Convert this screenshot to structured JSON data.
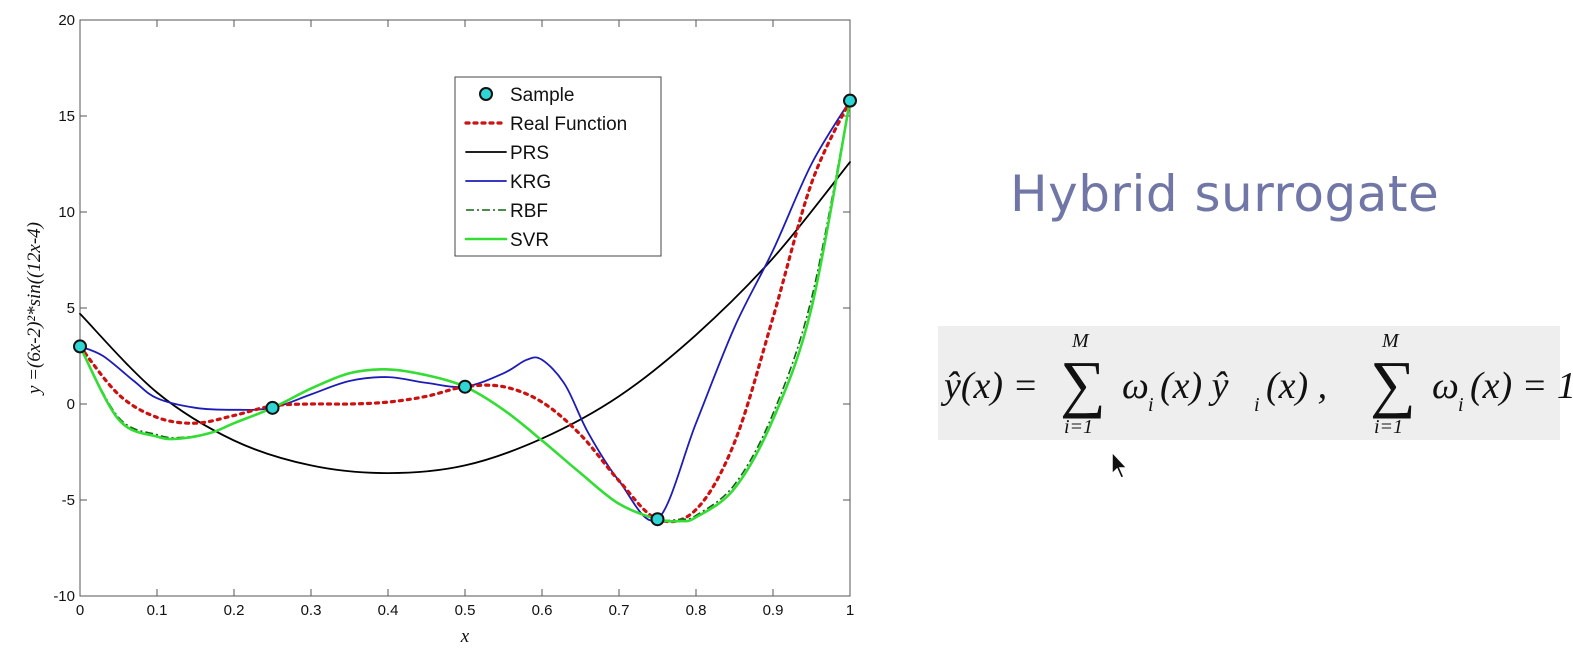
{
  "chart_data": {
    "type": "line",
    "xlabel": "x",
    "ylabel": "y =(6x-2)²*sin((12x-4)",
    "xlim": [
      0,
      1
    ],
    "ylim": [
      -10,
      20
    ],
    "xticks": [
      0,
      0.1,
      0.2,
      0.3,
      0.4,
      0.5,
      0.6,
      0.7,
      0.8,
      0.9,
      1
    ],
    "yticks": [
      -10,
      -5,
      0,
      5,
      10,
      15,
      20
    ],
    "grid": false,
    "legend_position": "top-center",
    "series": [
      {
        "name": "Sample",
        "style": "marker",
        "color": "#2fd6d6",
        "x": [
          0,
          0.25,
          0.5,
          0.75,
          1
        ],
        "y": [
          3.0,
          -0.2,
          0.9,
          -6.0,
          15.8
        ]
      },
      {
        "name": "Real Function",
        "style": "dotted",
        "color": "#cc1111",
        "x": [
          0,
          0.05,
          0.1,
          0.15,
          0.2,
          0.25,
          0.3,
          0.35,
          0.4,
          0.45,
          0.5,
          0.55,
          0.6,
          0.65,
          0.7,
          0.75,
          0.8,
          0.85,
          0.9,
          0.95,
          1
        ],
        "y": [
          3.0,
          0.5,
          -0.7,
          -1.0,
          -0.6,
          -0.1,
          0.0,
          0.0,
          0.1,
          0.4,
          0.9,
          0.9,
          0.1,
          -1.6,
          -4.0,
          -6.0,
          -5.5,
          -2.0,
          4.5,
          11.5,
          15.8
        ]
      },
      {
        "name": "PRS",
        "style": "solid",
        "color": "#000000",
        "x": [
          0,
          0.1,
          0.2,
          0.3,
          0.4,
          0.5,
          0.6,
          0.7,
          0.8,
          0.9,
          1
        ],
        "y": [
          4.7,
          0.6,
          -1.9,
          -3.2,
          -3.6,
          -3.2,
          -1.8,
          0.4,
          3.6,
          7.6,
          12.6
        ]
      },
      {
        "name": "KRG",
        "style": "solid",
        "color": "#1c1cb8",
        "x": [
          0,
          0.03,
          0.07,
          0.1,
          0.15,
          0.2,
          0.25,
          0.3,
          0.35,
          0.4,
          0.45,
          0.5,
          0.55,
          0.58,
          0.6,
          0.63,
          0.66,
          0.7,
          0.75,
          0.8,
          0.85,
          0.9,
          0.95,
          1
        ],
        "y": [
          3.0,
          2.5,
          1.2,
          0.3,
          -0.2,
          -0.3,
          -0.2,
          0.5,
          1.2,
          1.4,
          1.1,
          0.9,
          1.6,
          2.3,
          2.3,
          1.0,
          -1.5,
          -4.0,
          -6.0,
          -1.0,
          4.0,
          8.0,
          12.5,
          15.8
        ]
      },
      {
        "name": "RBF",
        "style": "dashdot",
        "color": "#116611",
        "x": [
          0,
          0.05,
          0.1,
          0.13,
          0.17,
          0.2,
          0.25,
          0.3,
          0.35,
          0.4,
          0.45,
          0.5,
          0.55,
          0.6,
          0.65,
          0.7,
          0.75,
          0.78,
          0.8,
          0.85,
          0.9,
          0.95,
          1
        ],
        "y": [
          3.0,
          -0.7,
          -1.6,
          -1.75,
          -1.5,
          -1.0,
          -0.2,
          0.8,
          1.6,
          1.8,
          1.5,
          0.9,
          -0.3,
          -1.9,
          -3.6,
          -5.2,
          -6.0,
          -6.0,
          -5.8,
          -4.2,
          -0.5,
          5.5,
          15.8
        ]
      },
      {
        "name": "SVR",
        "style": "solid",
        "color": "#33dd33",
        "x": [
          0,
          0.05,
          0.1,
          0.13,
          0.17,
          0.2,
          0.25,
          0.3,
          0.35,
          0.4,
          0.45,
          0.5,
          0.55,
          0.6,
          0.65,
          0.7,
          0.75,
          0.78,
          0.8,
          0.85,
          0.9,
          0.95,
          1
        ],
        "y": [
          3.0,
          -0.8,
          -1.7,
          -1.8,
          -1.5,
          -1.0,
          -0.2,
          0.8,
          1.6,
          1.8,
          1.5,
          0.9,
          -0.3,
          -1.9,
          -3.6,
          -5.2,
          -6.0,
          -6.1,
          -5.9,
          -4.4,
          -0.8,
          5.0,
          15.8
        ]
      }
    ]
  },
  "slide": {
    "title": "Hybrid surrogate",
    "formula": {
      "lhs": "ŷ(x) = ",
      "sum_upper": "M",
      "sum_lower": "i=1",
      "term1": "ω",
      "term1_sub": "i",
      "term1_rest": "(x) ŷ",
      "term1_sub2": "i",
      "term1_end": "(x) ,",
      "term2": "ω",
      "term2_sub": "i",
      "term2_end": "(x) = 1"
    }
  }
}
